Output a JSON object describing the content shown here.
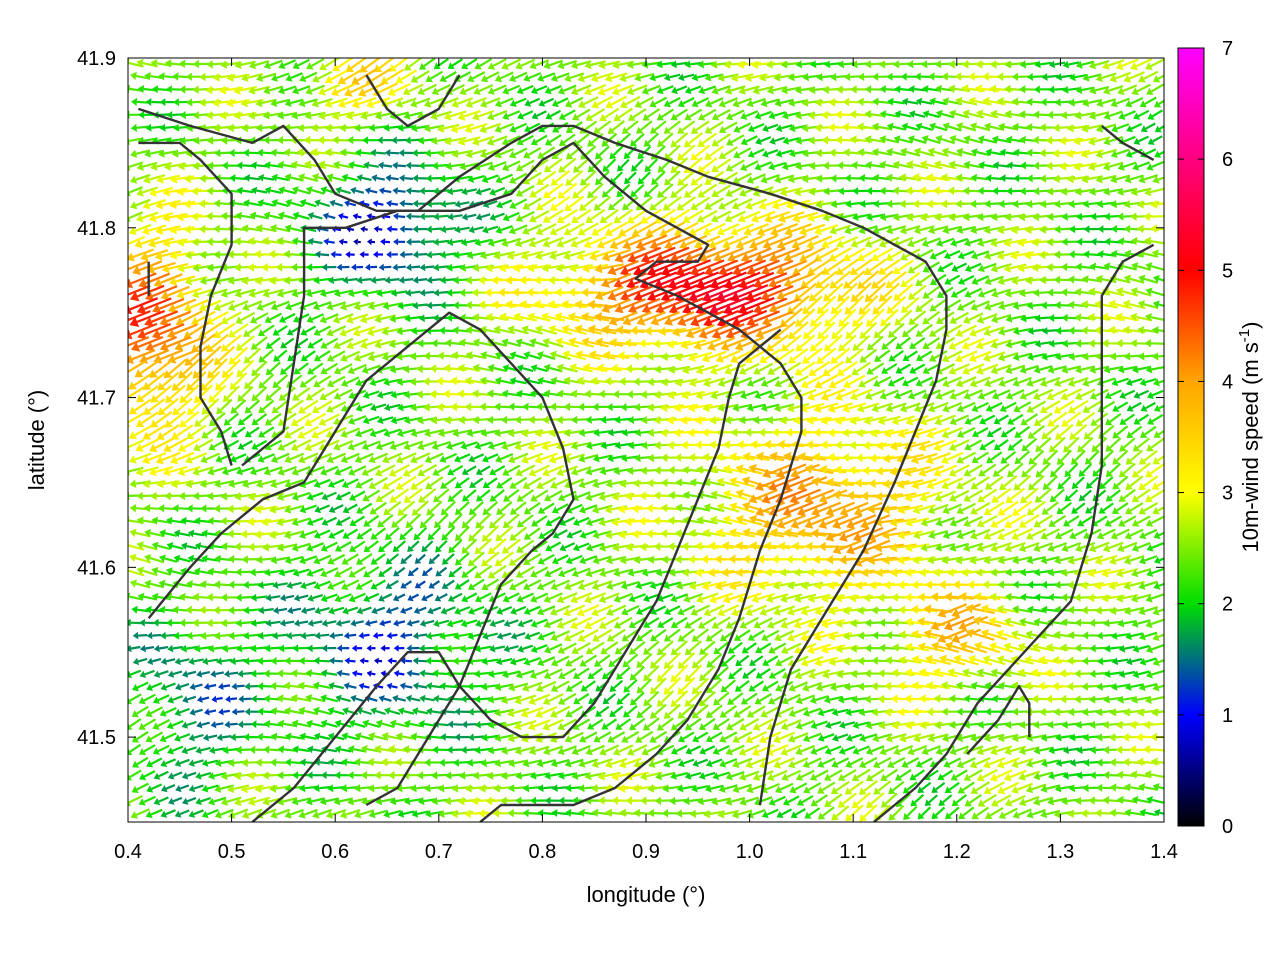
{
  "chart_data": {
    "type": "vector-field",
    "xlabel": "longitude (°)",
    "ylabel": "latitude (°)",
    "xlim": [
      0.4,
      1.4
    ],
    "ylim": [
      41.45,
      41.9
    ],
    "xticks": [
      0.4,
      0.5,
      0.6,
      0.7,
      0.8,
      0.9,
      1.0,
      1.1,
      1.2,
      1.3,
      1.4
    ],
    "xtick_labels": [
      "0.4",
      "0.5",
      "0.6",
      "0.7",
      "0.8",
      "0.9",
      "1.0",
      "1.1",
      "1.2",
      "1.3",
      "1.4"
    ],
    "yticks": [
      41.5,
      41.6,
      41.7,
      41.8,
      41.9
    ],
    "ytick_labels": [
      "41.5",
      "41.6",
      "41.7",
      "41.8",
      "41.9"
    ],
    "grid": false,
    "colorbar": {
      "label_main": "10m-wind speed (m s",
      "label_sup": "-1",
      "label_close": ")",
      "min": 0,
      "max": 7,
      "ticks": [
        0,
        1,
        2,
        3,
        4,
        5,
        6,
        7
      ],
      "tick_labels": [
        "0",
        "1",
        "2",
        "3",
        "4",
        "5",
        "6",
        "7"
      ],
      "colors": [
        "#000000",
        "#0000ff",
        "#00dd00",
        "#ffff00",
        "#ffa500",
        "#ff0000",
        "#ff00ff"
      ]
    },
    "contours": [
      [
        [
          0.41,
          41.85
        ],
        [
          0.45,
          41.85
        ],
        [
          0.47,
          41.84
        ],
        [
          0.5,
          41.82
        ],
        [
          0.5,
          41.79
        ],
        [
          0.48,
          41.76
        ],
        [
          0.47,
          41.73
        ],
        [
          0.47,
          41.7
        ],
        [
          0.49,
          41.68
        ],
        [
          0.5,
          41.66
        ]
      ],
      [
        [
          0.41,
          41.87
        ],
        [
          0.46,
          41.86
        ],
        [
          0.52,
          41.85
        ],
        [
          0.55,
          41.86
        ],
        [
          0.58,
          41.84
        ],
        [
          0.6,
          41.82
        ],
        [
          0.64,
          41.81
        ],
        [
          0.68,
          41.81
        ],
        [
          0.72,
          41.83
        ],
        [
          0.77,
          41.85
        ],
        [
          0.8,
          41.86
        ],
        [
          0.83,
          41.86
        ],
        [
          0.87,
          41.85
        ],
        [
          0.92,
          41.84
        ],
        [
          0.96,
          41.83
        ],
        [
          1.02,
          41.82
        ],
        [
          1.07,
          41.81
        ],
        [
          1.11,
          41.8
        ],
        [
          1.14,
          41.79
        ],
        [
          1.17,
          41.78
        ],
        [
          1.19,
          41.76
        ],
        [
          1.19,
          41.74
        ],
        [
          1.18,
          41.71
        ],
        [
          1.16,
          41.68
        ],
        [
          1.14,
          41.65
        ],
        [
          1.11,
          41.61
        ],
        [
          1.07,
          41.57
        ],
        [
          1.04,
          41.54
        ],
        [
          1.02,
          41.5
        ],
        [
          1.01,
          41.46
        ]
      ],
      [
        [
          0.51,
          41.66
        ],
        [
          0.55,
          41.68
        ],
        [
          0.56,
          41.72
        ],
        [
          0.57,
          41.76
        ],
        [
          0.57,
          41.8
        ],
        [
          0.61,
          41.8
        ],
        [
          0.66,
          41.81
        ],
        [
          0.72,
          41.81
        ],
        [
          0.77,
          41.82
        ],
        [
          0.8,
          41.84
        ],
        [
          0.83,
          41.85
        ],
        [
          0.86,
          41.83
        ],
        [
          0.9,
          41.81
        ],
        [
          0.93,
          41.8
        ],
        [
          0.96,
          41.79
        ],
        [
          0.95,
          41.78
        ],
        [
          0.91,
          41.78
        ],
        [
          0.89,
          41.77
        ],
        [
          0.93,
          41.76
        ],
        [
          0.99,
          41.74
        ],
        [
          1.03,
          41.72
        ],
        [
          1.05,
          41.7
        ],
        [
          1.05,
          41.68
        ],
        [
          1.03,
          41.64
        ],
        [
          1.01,
          41.61
        ],
        [
          0.99,
          41.57
        ],
        [
          0.97,
          41.54
        ],
        [
          0.94,
          41.51
        ],
        [
          0.91,
          41.49
        ],
        [
          0.87,
          41.47
        ],
        [
          0.83,
          41.46
        ],
        [
          0.8,
          41.46
        ],
        [
          0.76,
          41.46
        ],
        [
          0.74,
          41.45
        ]
      ],
      [
        [
          0.42,
          41.57
        ],
        [
          0.46,
          41.6
        ],
        [
          0.49,
          41.62
        ],
        [
          0.53,
          41.64
        ],
        [
          0.57,
          41.65
        ],
        [
          0.6,
          41.68
        ],
        [
          0.63,
          41.71
        ],
        [
          0.67,
          41.73
        ],
        [
          0.71,
          41.75
        ],
        [
          0.74,
          41.74
        ],
        [
          0.77,
          41.72
        ],
        [
          0.8,
          41.7
        ],
        [
          0.82,
          41.67
        ],
        [
          0.83,
          41.64
        ],
        [
          0.81,
          41.62
        ],
        [
          0.79,
          41.61
        ],
        [
          0.76,
          41.59
        ],
        [
          0.74,
          41.56
        ],
        [
          0.72,
          41.53
        ],
        [
          0.7,
          41.51
        ],
        [
          0.68,
          41.49
        ],
        [
          0.66,
          41.47
        ],
        [
          0.63,
          41.46
        ]
      ],
      [
        [
          0.52,
          41.45
        ],
        [
          0.56,
          41.47
        ],
        [
          0.6,
          41.5
        ],
        [
          0.64,
          41.53
        ],
        [
          0.67,
          41.55
        ],
        [
          0.7,
          41.55
        ],
        [
          0.72,
          41.53
        ],
        [
          0.75,
          41.51
        ],
        [
          0.78,
          41.5
        ],
        [
          0.82,
          41.5
        ],
        [
          0.85,
          41.52
        ],
        [
          0.87,
          41.54
        ],
        [
          0.89,
          41.56
        ],
        [
          0.91,
          41.58
        ],
        [
          0.93,
          41.61
        ],
        [
          0.95,
          41.64
        ],
        [
          0.97,
          41.67
        ],
        [
          0.98,
          41.7
        ],
        [
          0.99,
          41.72
        ],
        [
          1.01,
          41.73
        ],
        [
          1.03,
          41.74
        ]
      ],
      [
        [
          1.12,
          41.45
        ],
        [
          1.16,
          41.47
        ],
        [
          1.19,
          41.49
        ],
        [
          1.22,
          41.52
        ],
        [
          1.25,
          41.54
        ],
        [
          1.28,
          41.56
        ],
        [
          1.31,
          41.58
        ],
        [
          1.33,
          41.62
        ],
        [
          1.34,
          41.66
        ],
        [
          1.34,
          41.71
        ],
        [
          1.34,
          41.76
        ],
        [
          1.36,
          41.78
        ],
        [
          1.39,
          41.79
        ]
      ],
      [
        [
          1.21,
          41.49
        ],
        [
          1.24,
          41.51
        ],
        [
          1.26,
          41.53
        ],
        [
          1.27,
          41.52
        ],
        [
          1.27,
          41.5
        ]
      ],
      [
        [
          1.34,
          41.86
        ],
        [
          1.36,
          41.85
        ],
        [
          1.39,
          41.84
        ]
      ],
      [
        [
          0.63,
          41.89
        ],
        [
          0.65,
          41.87
        ],
        [
          0.67,
          41.86
        ],
        [
          0.7,
          41.87
        ],
        [
          0.72,
          41.89
        ]
      ],
      [
        [
          0.42,
          41.76
        ],
        [
          0.42,
          41.78
        ]
      ]
    ]
  }
}
